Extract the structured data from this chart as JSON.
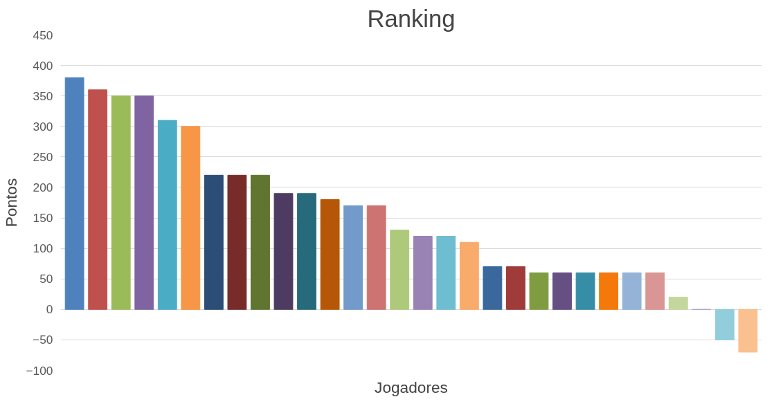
{
  "chart_data": {
    "type": "bar",
    "title": "Ranking",
    "xlabel": "Jogadores",
    "ylabel": "Pontos",
    "categories": [
      null,
      null,
      null,
      null,
      null,
      null,
      null,
      null,
      null,
      null,
      null,
      null,
      null,
      null,
      null,
      null,
      null,
      null,
      null,
      null,
      null,
      null,
      null,
      null,
      null,
      null,
      null,
      null,
      null,
      null
    ],
    "values": [
      380,
      360,
      350,
      350,
      310,
      300,
      220,
      220,
      220,
      190,
      190,
      180,
      170,
      170,
      130,
      120,
      120,
      110,
      70,
      70,
      60,
      60,
      60,
      60,
      60,
      60,
      20,
      0,
      -50,
      -70
    ],
    "colors": [
      "#4f81bd",
      "#c0504d",
      "#9bbb59",
      "#8064a2",
      "#4bacc6",
      "#f79646",
      "#2c4d75",
      "#772c2a",
      "#5f7530",
      "#4d3b62",
      "#276a7c",
      "#b65708",
      "#729aca",
      "#cd7371",
      "#afc97a",
      "#9983b5",
      "#6fbdd1",
      "#f9ab6b",
      "#3a679c",
      "#9f3b38",
      "#7f9d40",
      "#664f83",
      "#358ea6",
      "#f4790a",
      "#95b3d7",
      "#d99694",
      "#c3d69b",
      "#b2a2c7",
      "#92cddc",
      "#fac090"
    ],
    "ylim": [
      -100,
      450
    ],
    "yticks": [
      -100,
      -50,
      0,
      50,
      100,
      150,
      200,
      250,
      300,
      350,
      400,
      450
    ],
    "grid": "y",
    "tick_labels": "y"
  }
}
